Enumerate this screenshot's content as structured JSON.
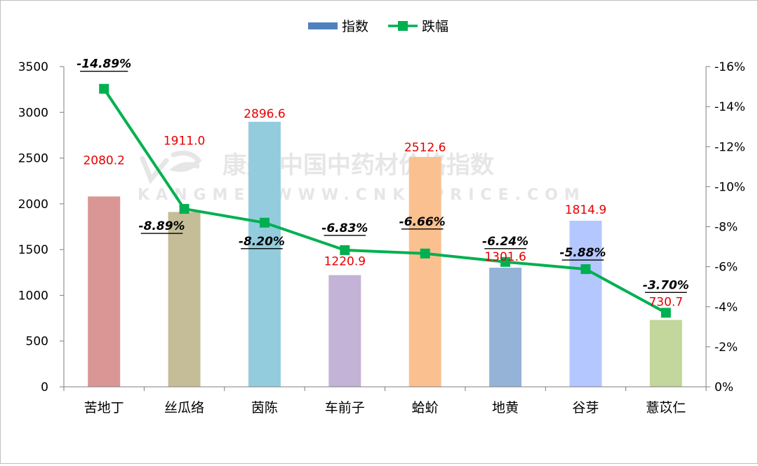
{
  "chart_data": {
    "type": "bar",
    "categories": [
      "苦地丁",
      "丝瓜络",
      "茵陈",
      "车前子",
      "蛤蚧",
      "地黄",
      "谷芽",
      "薏苡仁"
    ],
    "series": [
      {
        "name": "指数",
        "type": "bar",
        "axis": "left",
        "values": [
          2080.2,
          1911.0,
          2896.6,
          1220.9,
          2512.6,
          1301.6,
          1814.9,
          730.7
        ],
        "labels": [
          "2080.2",
          "1911.0",
          "2896.6",
          "1220.9",
          "2512.6",
          "1301.6",
          "1814.9",
          "730.7"
        ],
        "colors": [
          "#d99694",
          "#c4bd97",
          "#93cddd",
          "#c3b3d6",
          "#fac08f",
          "#95b3d7",
          "#b4c7ff",
          "#c3d69b"
        ],
        "legend_color": "#4f81bd",
        "label_color": "#e60000"
      },
      {
        "name": "跌幅",
        "type": "line",
        "axis": "right",
        "values": [
          -14.89,
          -8.89,
          -8.2,
          -6.83,
          -6.66,
          -6.24,
          -5.88,
          -3.7
        ],
        "labels": [
          "-14.89%",
          "-8.89%",
          "-8.20%",
          "-6.83%",
          "-6.66%",
          "-6.24%",
          "-5.88%",
          "-3.70%"
        ],
        "color": "#00b050"
      }
    ],
    "y_left": {
      "min": 0,
      "max": 3500,
      "step": 500,
      "ticks": [
        "0",
        "500",
        "1000",
        "1500",
        "2000",
        "2500",
        "3000",
        "3500"
      ]
    },
    "y_right": {
      "min": 0,
      "max": -16,
      "reversed": true,
      "ticks": [
        "0%",
        "-2%",
        "-4%",
        "-6%",
        "-8%",
        "-10%",
        "-12%",
        "-14%",
        "-16%"
      ]
    },
    "legend_position": "top-center",
    "grid": false,
    "watermark": {
      "line1": "康美·中国中药材价格指数",
      "line2": "KANGMEI WWW.CNKMPRICE.COM"
    }
  }
}
